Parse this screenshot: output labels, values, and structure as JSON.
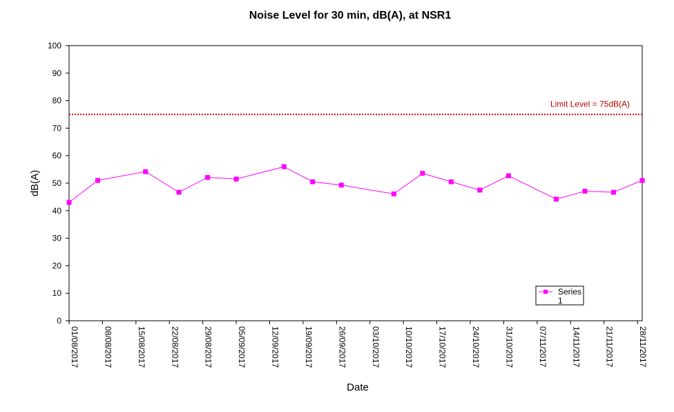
{
  "chart_data": {
    "type": "line",
    "title": "Noise Level for 30 min, dB(A), at NSR1",
    "xlabel": "Date",
    "ylabel": "dB(A)",
    "ylim": [
      0,
      100
    ],
    "yticks": [
      0,
      10,
      20,
      30,
      40,
      50,
      60,
      70,
      80,
      90,
      100
    ],
    "xlim": [
      "2017-08-01",
      "2017-11-29"
    ],
    "xticks": [
      "01/08/2017",
      "08/08/2017",
      "15/08/2017",
      "22/08/2017",
      "29/08/2017",
      "05/09/2017",
      "12/09/2017",
      "19/09/2017",
      "26/09/2017",
      "03/10/2017",
      "10/10/2017",
      "17/10/2017",
      "24/10/2017",
      "31/10/2017",
      "07/11/2017",
      "14/11/2017",
      "21/11/2017",
      "28/11/2017"
    ],
    "grid": false,
    "legend": "bottom-right",
    "series": [
      {
        "name": "Series 1",
        "color": "#ff00ff",
        "marker": "square",
        "points": [
          {
            "x": "2017-08-01",
            "y": 43.0
          },
          {
            "x": "2017-08-07",
            "y": 51.0
          },
          {
            "x": "2017-08-17",
            "y": 54.2
          },
          {
            "x": "2017-08-24",
            "y": 46.7
          },
          {
            "x": "2017-08-30",
            "y": 52.1
          },
          {
            "x": "2017-09-05",
            "y": 51.5
          },
          {
            "x": "2017-09-15",
            "y": 56.0
          },
          {
            "x": "2017-09-21",
            "y": 50.5
          },
          {
            "x": "2017-09-27",
            "y": 49.3
          },
          {
            "x": "2017-10-08",
            "y": 46.1
          },
          {
            "x": "2017-10-14",
            "y": 53.6
          },
          {
            "x": "2017-10-20",
            "y": 50.5
          },
          {
            "x": "2017-10-26",
            "y": 47.5
          },
          {
            "x": "2017-11-01",
            "y": 52.7
          },
          {
            "x": "2017-11-11",
            "y": 44.2
          },
          {
            "x": "2017-11-17",
            "y": 47.1
          },
          {
            "x": "2017-11-23",
            "y": 46.7
          },
          {
            "x": "2017-11-29",
            "y": 51.0
          }
        ]
      }
    ],
    "reference_line": {
      "y": 75,
      "label": "Limit Level = 75dB(A)",
      "color": "#c00000",
      "style": "dotted"
    }
  }
}
